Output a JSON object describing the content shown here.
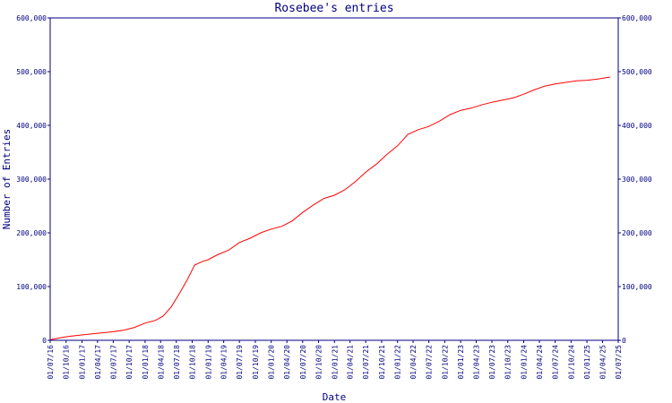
{
  "chart_data": {
    "type": "line",
    "title": "Rosebee's entries",
    "xlabel": "Date",
    "ylabel": "Number of Entries",
    "ylim": [
      0,
      600000
    ],
    "yticks": [
      0,
      100000,
      200000,
      300000,
      400000,
      500000,
      600000
    ],
    "ytick_labels": [
      "0",
      "100,000",
      "200,000",
      "300,000",
      "400,000",
      "500,000",
      "600,000"
    ],
    "xlim": [
      "2016-07-01",
      "2025-07-01"
    ],
    "xtick_labels": [
      "01/07/16",
      "01/10/16",
      "01/01/17",
      "01/04/17",
      "01/07/17",
      "01/10/17",
      "01/01/18",
      "01/04/18",
      "01/07/18",
      "01/10/18",
      "01/01/19",
      "01/04/19",
      "01/07/19",
      "01/10/19",
      "01/01/20",
      "01/04/20",
      "01/07/20",
      "01/10/20",
      "01/01/21",
      "01/04/21",
      "01/07/21",
      "01/10/21",
      "01/01/22",
      "01/04/22",
      "01/07/22",
      "01/10/22",
      "01/01/23",
      "01/04/23",
      "01/07/23",
      "01/10/23",
      "01/01/24",
      "01/04/24",
      "01/07/24",
      "01/10/24",
      "01/01/25",
      "01/04/25",
      "01/07/25"
    ],
    "grid": false,
    "color": "#ff0000",
    "series": [
      {
        "x": [
          "2016-07-01",
          "2016-09-01",
          "2016-11-01",
          "2017-01-01",
          "2017-03-01",
          "2017-05-01",
          "2017-07-01",
          "2017-09-01",
          "2017-11-01",
          "2018-01-01",
          "2018-03-01",
          "2018-04-15",
          "2018-06-01",
          "2018-07-15",
          "2018-09-01",
          "2018-10-15",
          "2018-12-01",
          "2019-01-01",
          "2019-03-01",
          "2019-05-01",
          "2019-07-01",
          "2019-09-01",
          "2019-11-01",
          "2020-01-01",
          "2020-03-01",
          "2020-05-01",
          "2020-07-01",
          "2020-09-01",
          "2020-11-01",
          "2021-01-01",
          "2021-03-01",
          "2021-05-01",
          "2021-07-01",
          "2021-09-01",
          "2021-11-01",
          "2022-01-01",
          "2022-03-01",
          "2022-05-01",
          "2022-07-01",
          "2022-09-01",
          "2022-11-01",
          "2023-01-01",
          "2023-03-01",
          "2023-05-01",
          "2023-07-01",
          "2023-09-01",
          "2023-11-01",
          "2024-01-01",
          "2024-03-01",
          "2024-05-01",
          "2024-07-01",
          "2024-09-01",
          "2024-11-01",
          "2025-01-01",
          "2025-03-01",
          "2025-05-15"
        ],
        "y": [
          1000,
          5000,
          8000,
          10000,
          12000,
          14000,
          16000,
          19000,
          24000,
          32000,
          37000,
          45000,
          62000,
          85000,
          112000,
          140000,
          147000,
          150000,
          160000,
          168000,
          182000,
          190000,
          200000,
          207000,
          212000,
          222000,
          238000,
          252000,
          264000,
          270000,
          280000,
          295000,
          313000,
          328000,
          346000,
          362000,
          383000,
          392000,
          398000,
          408000,
          420000,
          428000,
          432000,
          438000,
          443000,
          447000,
          451000,
          458000,
          466000,
          473000,
          477000,
          480000,
          483000,
          484000,
          486000,
          490000
        ]
      }
    ]
  }
}
